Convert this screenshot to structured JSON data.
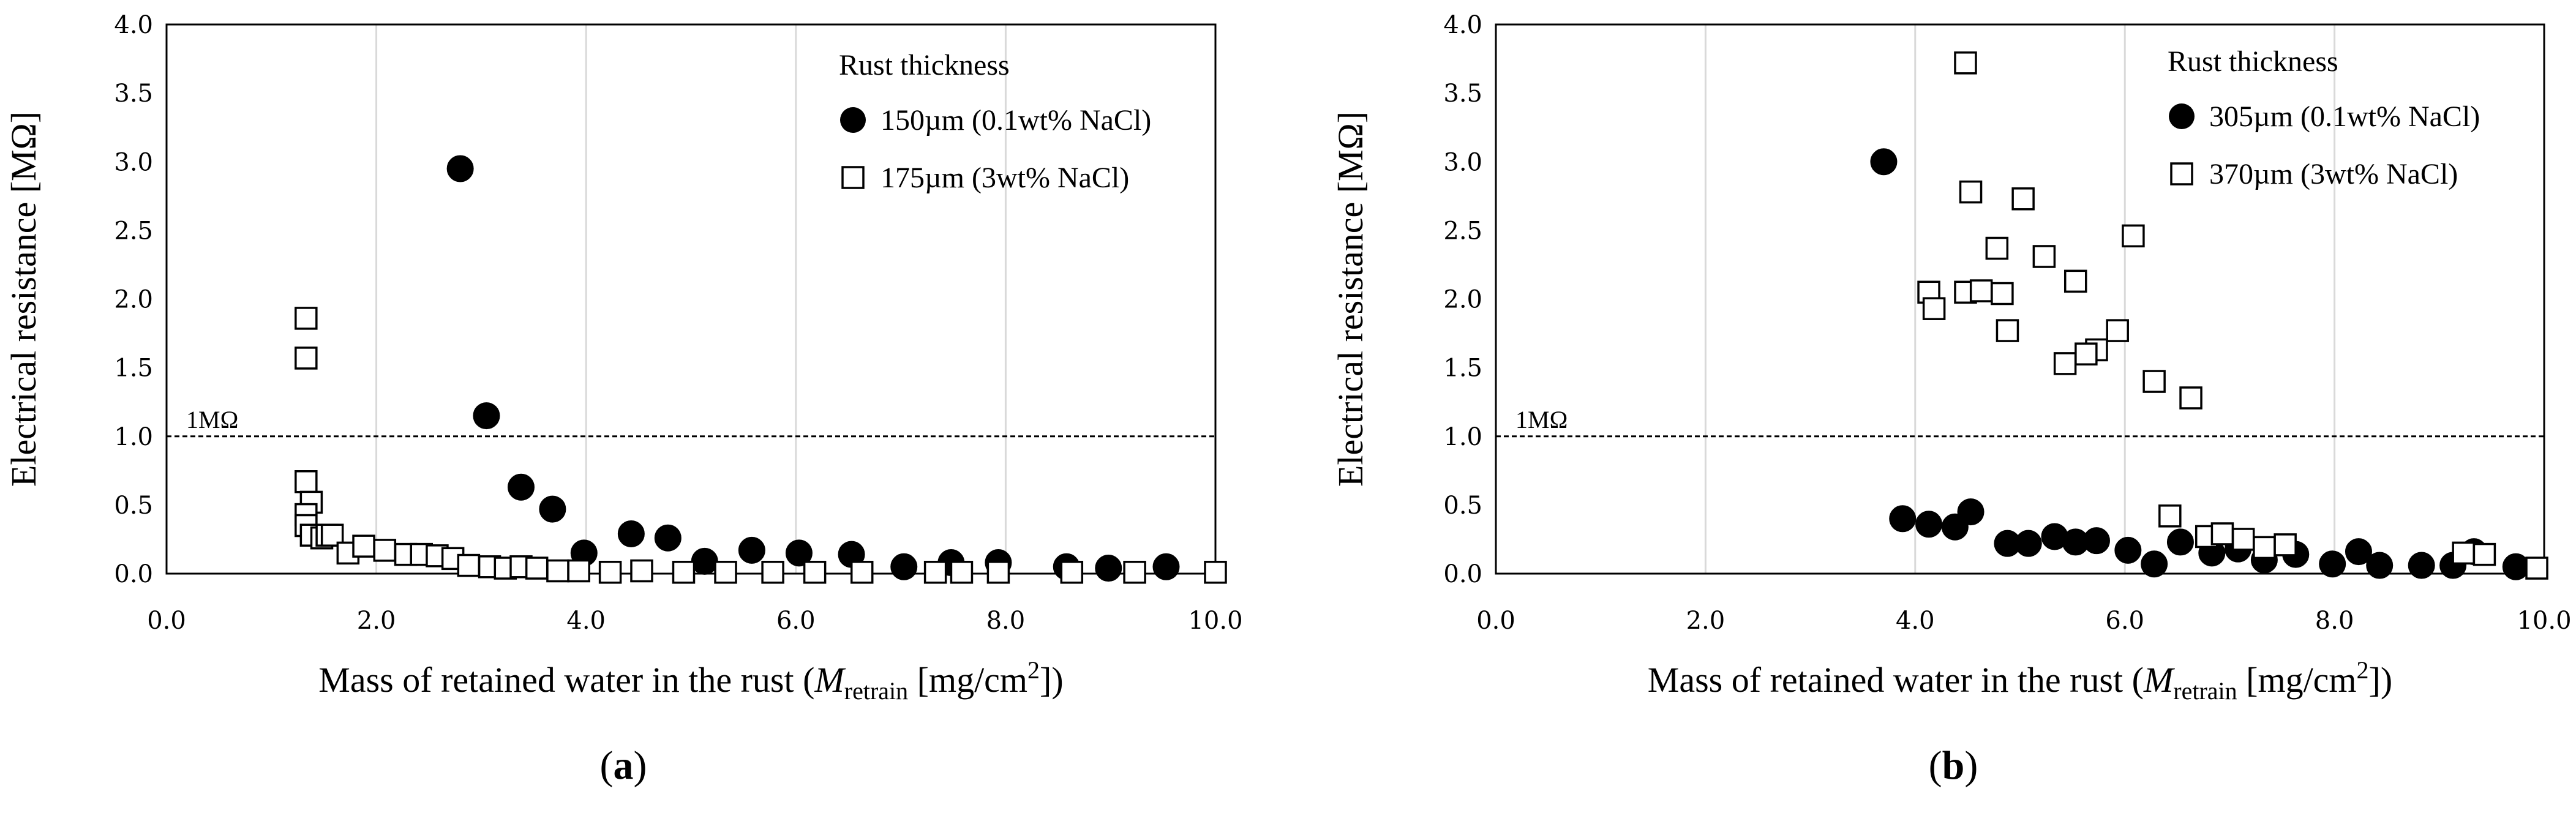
{
  "chart_data": [
    {
      "type": "scatter",
      "panel": "a",
      "xlabel_main": "Mass of retained water in the rust (",
      "xlabel_var": "M",
      "xlabel_sub": "retrain",
      "xlabel_unit": " [mg/cm",
      "xlabel_sup": "2",
      "xlabel_end": "])",
      "ylabel": "Electrical resistance [MΩ]",
      "xlim": [
        0,
        10
      ],
      "ylim": [
        0,
        4
      ],
      "xticks": [
        0,
        2,
        4,
        6,
        8,
        10
      ],
      "xtick_labels": [
        "0.0",
        "2.0",
        "4.0",
        "6.0",
        "8.0",
        "10.0"
      ],
      "yticks": [
        0,
        0.5,
        1,
        1.5,
        2,
        2.5,
        3,
        3.5,
        4
      ],
      "ytick_labels": [
        "0.0",
        "0.5",
        "1.0",
        "1.5",
        "2.0",
        "2.5",
        "3.0",
        "3.5",
        "4.0"
      ],
      "ref_line": {
        "y": 1.0,
        "label": "1MΩ"
      },
      "legend_title": "Rust thickness",
      "legend_position": "top-right",
      "grid": "vertical",
      "series": [
        {
          "name": "150µm (0.1wt% NaCl)",
          "marker": "filled-circle",
          "x": [
            2.8,
            3.05,
            3.38,
            3.68,
            3.98,
            4.43,
            4.78,
            5.13,
            5.58,
            6.03,
            6.53,
            7.03,
            7.48,
            7.93,
            8.58,
            8.98,
            9.53
          ],
          "y": [
            2.95,
            1.15,
            0.63,
            0.47,
            0.15,
            0.29,
            0.26,
            0.09,
            0.17,
            0.15,
            0.14,
            0.05,
            0.08,
            0.08,
            0.05,
            0.04,
            0.05
          ]
        },
        {
          "name": "175µm (3wt% NaCl)",
          "marker": "open-square",
          "x": [
            1.33,
            1.33,
            1.33,
            1.38,
            1.33,
            1.33,
            1.38,
            1.48,
            1.53,
            1.58,
            1.73,
            1.88,
            2.08,
            2.28,
            2.43,
            2.58,
            2.73,
            2.88,
            3.08,
            3.23,
            3.38,
            3.53,
            3.73,
            3.93,
            4.23,
            4.53,
            4.93,
            5.33,
            5.78,
            6.18,
            6.63,
            7.33,
            7.58,
            7.93,
            8.63,
            9.23,
            10.0
          ],
          "y": [
            1.86,
            1.57,
            0.67,
            0.52,
            0.43,
            0.35,
            0.28,
            0.26,
            0.28,
            0.28,
            0.15,
            0.2,
            0.17,
            0.14,
            0.14,
            0.13,
            0.11,
            0.06,
            0.05,
            0.04,
            0.05,
            0.04,
            0.02,
            0.02,
            0.01,
            0.02,
            0.01,
            0.01,
            0.01,
            0.01,
            0.01,
            0.01,
            0.01,
            0.01,
            0.01,
            0.01,
            0.01
          ]
        }
      ]
    },
    {
      "type": "scatter",
      "panel": "b",
      "xlabel_main": "Mass of retained water in the rust (",
      "xlabel_var": "M",
      "xlabel_sub": "retrain",
      "xlabel_unit": " [mg/cm",
      "xlabel_sup": "2",
      "xlabel_end": "])",
      "ylabel": "Electrical resistance [MΩ]",
      "xlim": [
        0,
        10
      ],
      "ylim": [
        0,
        4
      ],
      "xticks": [
        0,
        2,
        4,
        6,
        8,
        10
      ],
      "xtick_labels": [
        "0.0",
        "2.0",
        "4.0",
        "6.0",
        "8.0",
        "10.0"
      ],
      "yticks": [
        0,
        0.5,
        1,
        1.5,
        2,
        2.5,
        3,
        3.5,
        4
      ],
      "ytick_labels": [
        "0.0",
        "0.5",
        "1.0",
        "1.5",
        "2.0",
        "2.5",
        "3.0",
        "3.5",
        "4.0"
      ],
      "ref_line": {
        "y": 1.0,
        "label": "1MΩ"
      },
      "legend_title": "Rust thickness",
      "legend_position": "top-right",
      "grid": "vertical",
      "series": [
        {
          "name": "305µm (0.1wt% NaCl)",
          "marker": "filled-circle",
          "x": [
            3.7,
            3.88,
            4.13,
            4.38,
            4.53,
            4.88,
            5.08,
            5.33,
            5.53,
            5.73,
            6.03,
            6.28,
            6.53,
            6.83,
            7.08,
            7.33,
            7.63,
            7.98,
            8.23,
            8.43,
            8.83,
            9.13,
            9.33,
            9.73
          ],
          "y": [
            3.0,
            0.4,
            0.36,
            0.34,
            0.45,
            0.22,
            0.22,
            0.27,
            0.23,
            0.24,
            0.17,
            0.07,
            0.23,
            0.15,
            0.18,
            0.1,
            0.14,
            0.07,
            0.16,
            0.06,
            0.06,
            0.06,
            0.16,
            0.05
          ]
        },
        {
          "name": "370µm (3wt% NaCl)",
          "marker": "open-square",
          "x": [
            4.48,
            4.53,
            5.03,
            6.08,
            4.78,
            5.23,
            4.13,
            4.18,
            4.48,
            4.63,
            4.83,
            5.53,
            4.88,
            5.93,
            5.73,
            5.63,
            5.43,
            6.28,
            6.63,
            6.43,
            6.78,
            6.93,
            7.13,
            7.33,
            7.53,
            9.23,
            9.43,
            9.93
          ],
          "y": [
            3.72,
            2.78,
            2.73,
            2.46,
            2.37,
            2.31,
            2.05,
            1.93,
            2.05,
            2.06,
            2.04,
            2.13,
            1.77,
            1.77,
            1.63,
            1.6,
            1.53,
            1.4,
            1.28,
            0.42,
            0.27,
            0.29,
            0.25,
            0.19,
            0.21,
            0.15,
            0.14,
            0.04
          ]
        }
      ]
    }
  ]
}
